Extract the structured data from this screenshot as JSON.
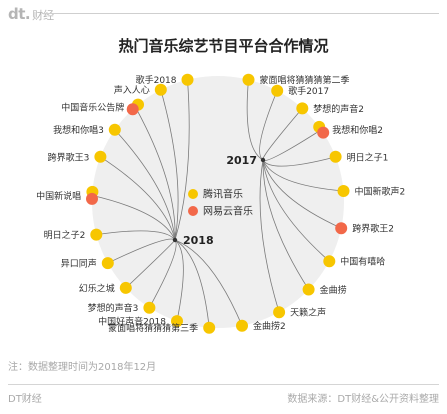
{
  "brand": {
    "mark": "dt.",
    "text": "财经"
  },
  "title": "热门音乐综艺节目平台合作情况",
  "legend": [
    {
      "name": "腾讯音乐",
      "color": "#f7c600"
    },
    {
      "name": "网易云音乐",
      "color": "#f26849"
    }
  ],
  "colors": {
    "tencent": "#f7c600",
    "netease": "#f26849",
    "disc": "#efefef",
    "line": "#7a7a7a"
  },
  "hubs": [
    {
      "year": "2018",
      "programs": [
        {
          "name": "歌手2018",
          "platforms": [
            "tencent"
          ]
        },
        {
          "name": "声入人心",
          "platforms": [
            "tencent"
          ]
        },
        {
          "name": "中国音乐公告牌",
          "platforms": [
            "tencent",
            "netease"
          ]
        },
        {
          "name": "我想和你唱3",
          "platforms": [
            "tencent"
          ]
        },
        {
          "name": "跨界歌王3",
          "platforms": [
            "tencent"
          ]
        },
        {
          "name": "中国新说唱",
          "platforms": [
            "tencent",
            "netease"
          ]
        },
        {
          "name": "明日之子2",
          "platforms": [
            "tencent"
          ]
        },
        {
          "name": "异口同声",
          "platforms": [
            "tencent"
          ]
        },
        {
          "name": "幻乐之城",
          "platforms": [
            "tencent"
          ]
        },
        {
          "name": "梦想的声音3",
          "platforms": [
            "tencent"
          ]
        },
        {
          "name": "中国好声音2018",
          "platforms": [
            "tencent"
          ]
        },
        {
          "name": "蒙面唱将猜猜猜第三季",
          "platforms": [
            "tencent"
          ]
        },
        {
          "name": "金曲捞2",
          "platforms": [
            "tencent"
          ]
        }
      ]
    },
    {
      "year": "2017",
      "programs": [
        {
          "name": "蒙面唱将猜猜猜第二季",
          "platforms": [
            "tencent"
          ]
        },
        {
          "name": "歌手2017",
          "platforms": [
            "tencent"
          ]
        },
        {
          "name": "梦想的声音2",
          "platforms": [
            "tencent"
          ]
        },
        {
          "name": "我想和你唱2",
          "platforms": [
            "tencent",
            "netease"
          ]
        },
        {
          "name": "明日之子1",
          "platforms": [
            "tencent"
          ]
        },
        {
          "name": "中国新歌声2",
          "platforms": [
            "tencent"
          ]
        },
        {
          "name": "跨界歌王2",
          "platforms": [
            "netease"
          ]
        },
        {
          "name": "中国有嘻哈",
          "platforms": [
            "tencent"
          ]
        },
        {
          "name": "金曲捞",
          "platforms": [
            "tencent"
          ]
        },
        {
          "name": "天籁之声",
          "platforms": [
            "tencent"
          ]
        }
      ]
    }
  ],
  "note": "注：数据整理时间为2018年12月",
  "footer": {
    "left": "DT财经",
    "right": "数据来源：DT财经&公开资料整理"
  }
}
